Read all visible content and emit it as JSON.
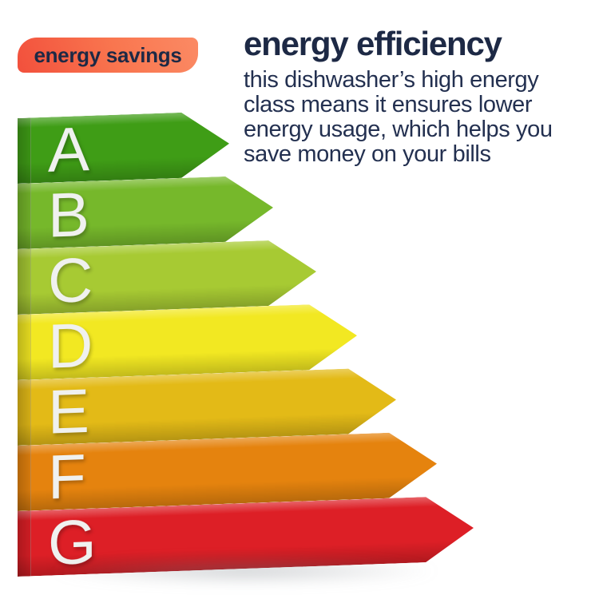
{
  "badge": {
    "label": "energy savings"
  },
  "header": {
    "title": "energy efficiency",
    "description_lines": [
      "this dishwasher’s high energy",
      "class means it ensures lower",
      "energy usage, which helps you",
      "save money on your bills"
    ]
  },
  "colors": {
    "text_navy": "#1d2945",
    "badge_gradient_start": "#f2503c",
    "badge_gradient_end": "#fb8a64",
    "grade_letter": "#f0f1ef",
    "background": "#ffffff"
  },
  "ratings": [
    {
      "grade": "A",
      "color": "#3f9d16",
      "length": 265
    },
    {
      "grade": "B",
      "color": "#76b82b",
      "length": 320
    },
    {
      "grade": "C",
      "color": "#a7ca33",
      "length": 374
    },
    {
      "grade": "D",
      "color": "#f2e822",
      "length": 425
    },
    {
      "grade": "E",
      "color": "#e3ba17",
      "length": 474
    },
    {
      "grade": "F",
      "color": "#e5830e",
      "length": 525
    },
    {
      "grade": "G",
      "color": "#dd1f26",
      "length": 571
    }
  ],
  "chart_data": {
    "type": "bar",
    "orientation": "horizontal",
    "title": "energy efficiency",
    "categories": [
      "A",
      "B",
      "C",
      "D",
      "E",
      "F",
      "G"
    ],
    "values": [
      265,
      320,
      374,
      425,
      474,
      525,
      571
    ],
    "value_meaning": "arrow length in pixels; shortest arrow (A) = most efficient, longest (G) = least efficient",
    "colors": [
      "#3f9d16",
      "#76b82b",
      "#a7ca33",
      "#f2e822",
      "#e3ba17",
      "#e5830e",
      "#dd1f26"
    ],
    "legend": false,
    "grid": false
  }
}
